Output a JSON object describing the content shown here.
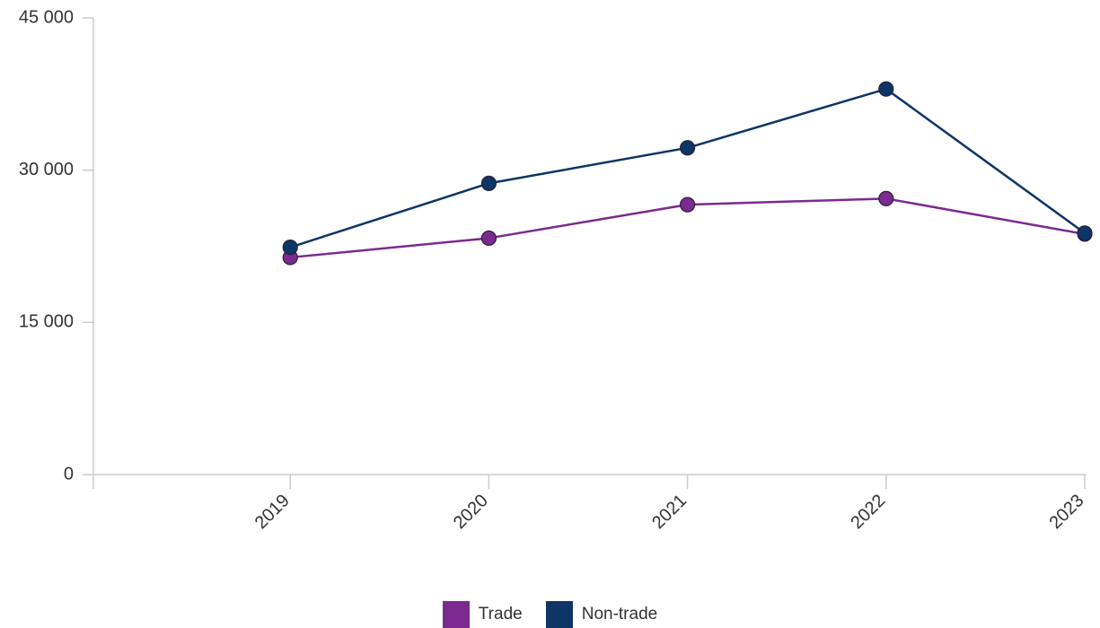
{
  "chart_data": {
    "type": "line",
    "title": "",
    "xlabel": "",
    "ylabel": "",
    "categories": [
      "2019",
      "2020",
      "2021",
      "2022",
      "2023"
    ],
    "ylim": [
      0,
      45000
    ],
    "yticks": [
      0,
      15000,
      30000,
      45000
    ],
    "ytick_labels": [
      "0",
      "15 000",
      "30 000",
      "45 000"
    ],
    "grid": false,
    "legend_position": "bottom",
    "series": [
      {
        "name": "Trade",
        "color": "#7b2a8f",
        "values": [
          21400,
          23300,
          26600,
          27200,
          23700
        ]
      },
      {
        "name": "Non-trade",
        "color": "#0d3566",
        "values": [
          22400,
          28700,
          32200,
          38000,
          23800
        ]
      }
    ]
  }
}
